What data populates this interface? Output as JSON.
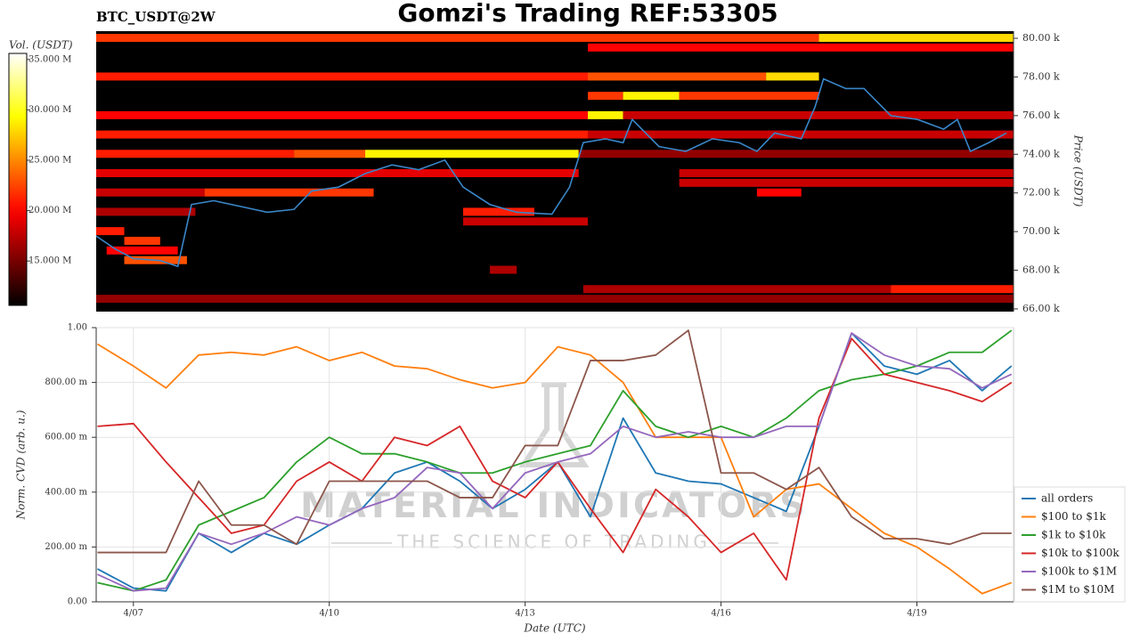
{
  "chart_data": [
    {
      "type": "heatmap",
      "title": "Gomzi's Trading REF:53305",
      "symbol": "BTC_USDT@2W",
      "ylabel": "Price (USDT)",
      "xlim": [
        6.43,
        20.48
      ],
      "ylim": [
        65860,
        80370
      ],
      "yticks": [
        {
          "value": 66000,
          "label": "66.00 k"
        },
        {
          "value": 68000,
          "label": "68.00 k"
        },
        {
          "value": 70000,
          "label": "70.00 k"
        },
        {
          "value": 72000,
          "label": "72.00 k"
        },
        {
          "value": 74000,
          "label": "74.00 k"
        },
        {
          "value": 76000,
          "label": "76.00 k"
        },
        {
          "value": 78000,
          "label": "78.00 k"
        },
        {
          "value": 80000,
          "label": "80.00 k"
        }
      ],
      "colorbar": {
        "label": "Vol. (USDT)",
        "colormap": "hot",
        "lim": [
          10600000,
          35600000
        ],
        "ticks": [
          {
            "value": 15000000,
            "label": "15.000 M"
          },
          {
            "value": 20000000,
            "label": "20.000 M"
          },
          {
            "value": 25000000,
            "label": "25.000 M"
          },
          {
            "value": 30000000,
            "label": "30.000 M"
          },
          {
            "value": 35000000,
            "label": "35.000 M"
          }
        ]
      },
      "levels": [
        {
          "price": 80000,
          "x": [
            6.43,
            17.5
          ],
          "volume": 22000000
        },
        {
          "price": 80000,
          "x": [
            17.5,
            20.48
          ],
          "volume": 28000000
        },
        {
          "price": 79500,
          "x": [
            13.96,
            20.48
          ],
          "volume": 20000000
        },
        {
          "price": 78000,
          "x": [
            6.43,
            13.96
          ],
          "volume": 21000000
        },
        {
          "price": 78000,
          "x": [
            13.96,
            16.69
          ],
          "volume": 23000000
        },
        {
          "price": 78000,
          "x": [
            16.69,
            17.5
          ],
          "volume": 28000000
        },
        {
          "price": 77000,
          "x": [
            13.96,
            14.5
          ],
          "volume": 22000000
        },
        {
          "price": 77000,
          "x": [
            14.5,
            15.36
          ],
          "volume": 29000000
        },
        {
          "price": 77000,
          "x": [
            15.36,
            17.5
          ],
          "volume": 22000000
        },
        {
          "price": 76000,
          "x": [
            6.43,
            13.96
          ],
          "volume": 20000000
        },
        {
          "price": 76000,
          "x": [
            13.96,
            14.5
          ],
          "volume": 29000000
        },
        {
          "price": 76000,
          "x": [
            14.5,
            20.48
          ],
          "volume": 18000000
        },
        {
          "price": 75000,
          "x": [
            6.43,
            13.96
          ],
          "volume": 21000000
        },
        {
          "price": 75000,
          "x": [
            13.96,
            20.48
          ],
          "volume": 18000000
        },
        {
          "price": 74000,
          "x": [
            6.43,
            9.46
          ],
          "volume": 21000000
        },
        {
          "price": 74000,
          "x": [
            9.46,
            10.55
          ],
          "volume": 23000000
        },
        {
          "price": 74000,
          "x": [
            10.55,
            13.82
          ],
          "volume": 29000000
        },
        {
          "price": 74000,
          "x": [
            13.82,
            20.48
          ],
          "volume": 16000000
        },
        {
          "price": 73000,
          "x": [
            6.43,
            13.82
          ],
          "volume": 19000000
        },
        {
          "price": 73000,
          "x": [
            15.36,
            20.48
          ],
          "volume": 18000000
        },
        {
          "price": 72500,
          "x": [
            15.36,
            20.48
          ],
          "volume": 18000000
        },
        {
          "price": 72000,
          "x": [
            6.43,
            8.09
          ],
          "volume": 18000000
        },
        {
          "price": 72000,
          "x": [
            8.09,
            10.68
          ],
          "volume": 22000000
        },
        {
          "price": 72000,
          "x": [
            16.55,
            17.23
          ],
          "volume": 20000000
        },
        {
          "price": 71000,
          "x": [
            6.43,
            7.95
          ],
          "volume": 17000000
        },
        {
          "price": 71000,
          "x": [
            12.05,
            13.14
          ],
          "volume": 21000000
        },
        {
          "price": 70500,
          "x": [
            12.05,
            13.96
          ],
          "volume": 18000000
        },
        {
          "price": 70000,
          "x": [
            6.43,
            6.86
          ],
          "volume": 21000000
        },
        {
          "price": 69500,
          "x": [
            6.86,
            7.41
          ],
          "volume": 22000000
        },
        {
          "price": 69000,
          "x": [
            6.59,
            7.68
          ],
          "volume": 20000000
        },
        {
          "price": 68500,
          "x": [
            6.86,
            7.82
          ],
          "volume": 23000000
        },
        {
          "price": 68000,
          "x": [
            12.46,
            12.87
          ],
          "volume": 17000000
        },
        {
          "price": 67000,
          "x": [
            13.89,
            18.6
          ],
          "volume": 17000000
        },
        {
          "price": 67000,
          "x": [
            18.6,
            20.48
          ],
          "volume": 21000000
        },
        {
          "price": 66500,
          "x": [
            6.43,
            20.48
          ],
          "volume": 16000000
        }
      ],
      "price_line": {
        "color": "#3a86c8",
        "x": [
          6.43,
          6.73,
          7.0,
          7.41,
          7.68,
          7.89,
          8.23,
          8.64,
          9.05,
          9.46,
          9.73,
          10.14,
          10.55,
          10.96,
          11.37,
          11.77,
          12.05,
          12.46,
          12.87,
          13.41,
          13.68,
          13.89,
          14.23,
          14.5,
          14.64,
          15.05,
          15.46,
          15.87,
          16.28,
          16.55,
          16.82,
          17.23,
          17.44,
          17.57,
          17.91,
          18.19,
          18.6,
          19.01,
          19.41,
          19.62,
          19.82,
          20.1,
          20.37
        ],
        "values": [
          69770,
          69080,
          68600,
          68500,
          68200,
          71400,
          71600,
          71300,
          71000,
          71150,
          72100,
          72300,
          73000,
          73450,
          73200,
          73700,
          72300,
          71400,
          71000,
          70900,
          72300,
          74600,
          74800,
          74600,
          75800,
          74400,
          74150,
          74800,
          74600,
          74150,
          75100,
          74800,
          76450,
          77900,
          77400,
          77400,
          76000,
          75800,
          75300,
          75800,
          74150,
          74600,
          75100
        ]
      }
    },
    {
      "type": "line",
      "xlabel": "Date (UTC)",
      "ylabel": "Norm. CVD (arb. u.)",
      "xlim": [
        6.43,
        20.48
      ],
      "ylim": [
        0,
        1
      ],
      "xticks": [
        {
          "value": 7,
          "label": "4/07"
        },
        {
          "value": 10,
          "label": "4/10"
        },
        {
          "value": 13,
          "label": "4/13"
        },
        {
          "value": 16,
          "label": "4/16"
        },
        {
          "value": 19,
          "label": "4/19"
        }
      ],
      "yticks": [
        {
          "value": 0,
          "label": "0.00"
        },
        {
          "value": 0.2,
          "label": "200.00 m"
        },
        {
          "value": 0.4,
          "label": "400.00 m"
        },
        {
          "value": 0.6,
          "label": "600.00 m"
        },
        {
          "value": 0.8,
          "label": "800.00 m"
        },
        {
          "value": 1,
          "label": "1.00"
        }
      ],
      "grid": true,
      "legend": "lower right",
      "watermark": {
        "title": "MATERIAL INDICATORS",
        "tagline": "THE SCIENCE OF TRADING"
      },
      "x": [
        6.45,
        7.0,
        7.5,
        8.0,
        8.5,
        9.0,
        9.5,
        10.0,
        10.5,
        11.0,
        11.5,
        12.0,
        12.5,
        13.0,
        13.5,
        14.0,
        14.5,
        15.0,
        15.5,
        16.0,
        16.5,
        17.0,
        17.5,
        18.0,
        18.5,
        19.0,
        19.5,
        20.0,
        20.45
      ],
      "series": [
        {
          "name": "all orders",
          "color": "#1f77b4",
          "values": [
            0.12,
            0.05,
            0.04,
            0.25,
            0.18,
            0.25,
            0.21,
            0.28,
            0.34,
            0.47,
            0.51,
            0.44,
            0.34,
            0.41,
            0.51,
            0.31,
            0.67,
            0.47,
            0.44,
            0.43,
            0.38,
            0.33,
            0.64,
            0.98,
            0.86,
            0.83,
            0.88,
            0.77,
            0.86
          ]
        },
        {
          "name": "$100 to $1k",
          "color": "#ff7f0e",
          "values": [
            0.94,
            0.86,
            0.78,
            0.9,
            0.91,
            0.9,
            0.93,
            0.88,
            0.91,
            0.86,
            0.85,
            0.81,
            0.78,
            0.8,
            0.93,
            0.9,
            0.8,
            0.6,
            0.6,
            0.6,
            0.31,
            0.41,
            0.43,
            0.34,
            0.25,
            0.2,
            0.12,
            0.03,
            0.07
          ]
        },
        {
          "name": "$1k to $10k",
          "color": "#2ca02c",
          "values": [
            0.07,
            0.04,
            0.08,
            0.28,
            0.33,
            0.38,
            0.51,
            0.6,
            0.54,
            0.54,
            0.51,
            0.47,
            0.47,
            0.51,
            0.54,
            0.57,
            0.77,
            0.64,
            0.6,
            0.64,
            0.6,
            0.67,
            0.77,
            0.81,
            0.83,
            0.86,
            0.91,
            0.91,
            0.99
          ]
        },
        {
          "name": "$10k to $100k",
          "color": "#d62728",
          "values": [
            0.64,
            0.65,
            0.51,
            0.38,
            0.25,
            0.28,
            0.44,
            0.51,
            0.44,
            0.6,
            0.57,
            0.64,
            0.44,
            0.38,
            0.51,
            0.34,
            0.18,
            0.41,
            0.31,
            0.18,
            0.25,
            0.08,
            0.67,
            0.96,
            0.83,
            0.8,
            0.77,
            0.73,
            0.8
          ]
        },
        {
          "name": "$100k to $1M",
          "color": "#9467bd",
          "values": [
            0.1,
            0.04,
            0.05,
            0.25,
            0.21,
            0.25,
            0.31,
            0.28,
            0.34,
            0.38,
            0.49,
            0.47,
            0.34,
            0.47,
            0.51,
            0.54,
            0.64,
            0.6,
            0.62,
            0.6,
            0.6,
            0.64,
            0.64,
            0.98,
            0.9,
            0.86,
            0.85,
            0.78,
            0.83
          ]
        },
        {
          "name": "$1M to $10M",
          "color": "#8c564b",
          "values": [
            0.18,
            0.18,
            0.18,
            0.44,
            0.28,
            0.28,
            0.21,
            0.44,
            0.44,
            0.44,
            0.44,
            0.38,
            0.38,
            0.57,
            0.57,
            0.88,
            0.88,
            0.9,
            0.99,
            0.47,
            0.47,
            0.41,
            0.49,
            0.31,
            0.23,
            0.23,
            0.21,
            0.25,
            0.25
          ]
        }
      ]
    }
  ]
}
